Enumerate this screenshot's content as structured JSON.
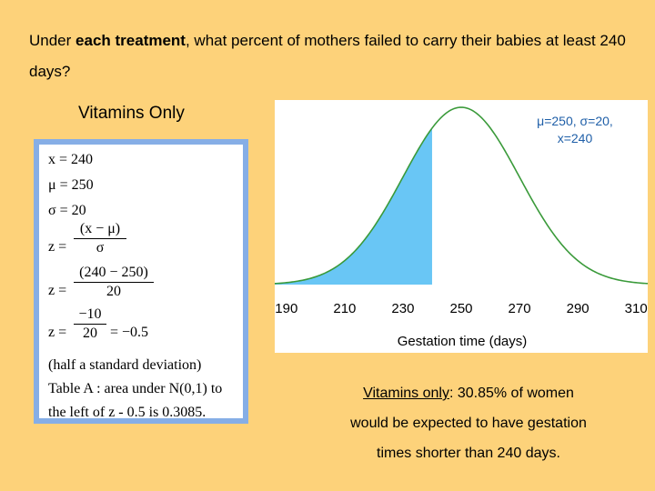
{
  "question": {
    "prefix": "Under ",
    "bold": "each treatment",
    "suffix": ", what percent of mothers failed to carry their babies at least 240 days?"
  },
  "subtitle": "Vitamins Only",
  "work": {
    "line1": "x = 240",
    "line2": "μ = 250",
    "line3": "σ = 20",
    "z_label": "z =",
    "frac1_num": "(x − μ)",
    "frac1_den": "σ",
    "frac2_num": "(240 − 250)",
    "frac2_den": "20",
    "frac3_num": "−10",
    "frac3_den": "20",
    "frac3_result": "= −0.5",
    "note1": "(half a standard deviation)",
    "note2": "Table A : area under N(0,1) to",
    "note3": "the left of z - 0.5 is 0.3085."
  },
  "params_box": {
    "line1": "μ=250, σ=20,",
    "line2": "x=240"
  },
  "chart_data": {
    "type": "area",
    "distribution": "normal",
    "mean": 250,
    "sd": 20,
    "shade_below": 240,
    "xlim": [
      186,
      314
    ],
    "xticks": [
      190,
      210,
      230,
      250,
      270,
      290,
      310
    ],
    "xlabel": "Gestation time (days)",
    "curve_color": "#3a9a3a",
    "shade_color": "#69c6f5"
  },
  "conclusion": {
    "underlined": "Vitamins only",
    "rest_line1": ": 30.85% of women",
    "line2": "would be expected to have gestation",
    "line3": "times shorter than 240 days."
  }
}
